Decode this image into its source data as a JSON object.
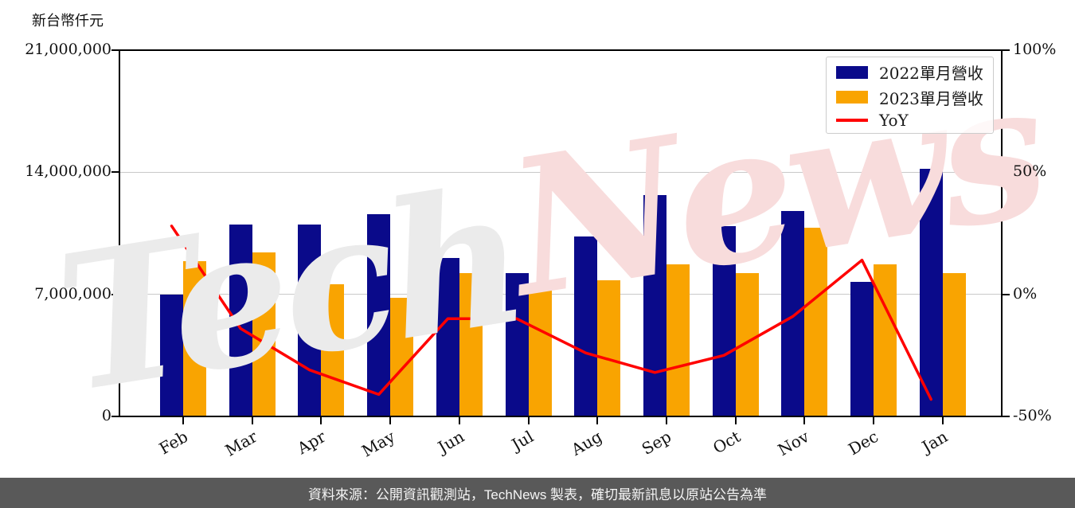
{
  "chart_data": {
    "type": "bar",
    "title": "",
    "categories": [
      "Feb",
      "Mar",
      "Apr",
      "May",
      "Jun",
      "Jul",
      "Aug",
      "Sep",
      "Oct",
      "Nov",
      "Dec",
      "Jan"
    ],
    "series": [
      {
        "name": "2022單月營收",
        "kind": "bar",
        "color": "#0a0a8a",
        "values": [
          7000000,
          11000000,
          11000000,
          11600000,
          9100000,
          8200000,
          10300000,
          12700000,
          10900000,
          11800000,
          7700000,
          14200000
        ]
      },
      {
        "name": "2023單月營收",
        "kind": "bar",
        "color": "#f9a401",
        "values": [
          8900000,
          9400000,
          7600000,
          6800000,
          8200000,
          7400000,
          7800000,
          8700000,
          8200000,
          10800000,
          8700000,
          8200000
        ]
      }
    ],
    "line_series": {
      "name": "YoY",
      "kind": "line",
      "color": "#ff0000",
      "axis": "right",
      "values": [
        28,
        -14,
        -31,
        -41,
        -10,
        -10,
        -24,
        -32,
        -25,
        -9,
        14,
        -43
      ]
    },
    "left_axis": {
      "title": "新台幣仟元",
      "min": 0,
      "max": 21000000,
      "tick_values": [
        0,
        7000000,
        14000000,
        21000000
      ],
      "tick_labels": [
        "0",
        "7,000,000",
        "14,000,000",
        "21,000,000"
      ]
    },
    "right_axis": {
      "min": -50,
      "max": 100,
      "tick_values": [
        -50,
        0,
        50,
        100
      ],
      "tick_labels": [
        "-50%",
        "0%",
        "50%",
        "100%"
      ]
    },
    "grid": true,
    "legend_position": "top-right"
  },
  "watermark": {
    "part1": "Tech",
    "part2": "News",
    "color1": "#ebebeb",
    "color2": "#f8dcdc"
  },
  "footer": {
    "text": "資料來源：公開資訊觀測站，TechNews 製表，確切最新訊息以原站公告為準",
    "bg": "#595959",
    "color": "#f5f5f5"
  }
}
